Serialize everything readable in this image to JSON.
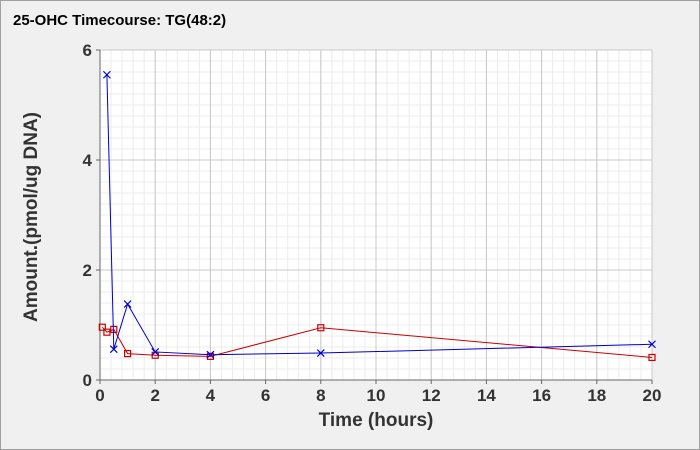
{
  "chart_data": {
    "type": "line",
    "title": "25-OHC Timecourse: TG(48:2)",
    "xlabel": "Time (hours)",
    "ylabel": "Amount.(pmol/ug DNA)",
    "xlim": [
      0,
      20
    ],
    "ylim": [
      0,
      6
    ],
    "xticks": [
      0,
      2,
      4,
      6,
      8,
      10,
      12,
      14,
      16,
      18,
      20
    ],
    "yticks": [
      0,
      2,
      4,
      6
    ],
    "grid": true,
    "minor_grid": true,
    "background": "#f0f0f0",
    "plot_background": "#ffffff",
    "series": [
      {
        "color": "#cc0000",
        "marker": "square",
        "x": [
          0.083,
          0.25,
          0.5,
          1,
          2,
          4,
          8,
          20
        ],
        "y": [
          0.96,
          0.87,
          0.92,
          0.48,
          0.45,
          0.43,
          0.95,
          0.41
        ]
      },
      {
        "color": "#0000cc",
        "marker": "x",
        "x": [
          0.25,
          0.5,
          1,
          2,
          4,
          8,
          20
        ],
        "y": [
          5.55,
          0.56,
          1.38,
          0.51,
          0.46,
          0.49,
          0.65
        ]
      }
    ]
  }
}
